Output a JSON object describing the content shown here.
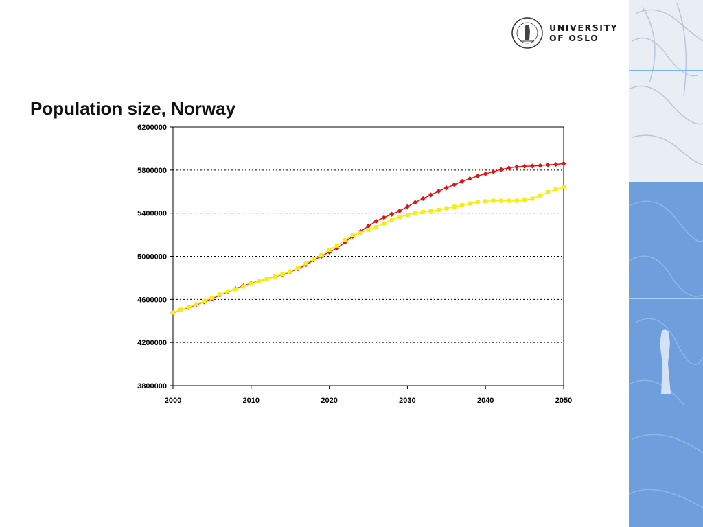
{
  "header": {
    "logo": {
      "line1": "UNIVERSITY",
      "line2": "OF OSLO",
      "seal_text": "UNIVERSITAS OSLOENSIS MDCCCXI"
    }
  },
  "slide": {
    "title": "Population size, Norway"
  },
  "colors": {
    "panel_blue": "#6e9fdc",
    "panel_light": "#e9eef5",
    "panel_line": "#7ab6f0",
    "series_red": "#e01414",
    "series_yellow": "#f3ef10"
  },
  "chart_data": {
    "type": "line",
    "title": "",
    "xlabel": "",
    "ylabel": "",
    "xlim": [
      2000,
      2050
    ],
    "ylim": [
      3800000,
      6200000
    ],
    "x_ticks": [
      2000,
      2010,
      2020,
      2030,
      2040,
      2050
    ],
    "y_ticks": [
      3800000,
      4200000,
      4600000,
      5000000,
      5400000,
      5800000,
      6200000
    ],
    "x_tick_labels": [
      "2000",
      "2010",
      "2020",
      "2030",
      "2040",
      "2050"
    ],
    "y_tick_labels": [
      "3800000",
      "4200000",
      "4600000",
      "5000000",
      "5400000",
      "5800000",
      "6200000"
    ],
    "grid": "horizontal dotted",
    "legend": "none",
    "x": [
      2000,
      2001,
      2002,
      2003,
      2004,
      2005,
      2006,
      2007,
      2008,
      2009,
      2010,
      2011,
      2012,
      2013,
      2014,
      2015,
      2016,
      2017,
      2018,
      2019,
      2020,
      2021,
      2022,
      2023,
      2024,
      2025,
      2026,
      2027,
      2028,
      2029,
      2030,
      2031,
      2032,
      2033,
      2034,
      2035,
      2036,
      2037,
      2038,
      2039,
      2040,
      2041,
      2042,
      2043,
      2044,
      2045,
      2046,
      2047,
      2048,
      2049,
      2050
    ],
    "series": [
      {
        "color": "#e01414",
        "marker": "diamond",
        "values": [
          4478000,
          4503000,
          4525000,
          4552000,
          4577000,
          4606000,
          4640000,
          4670000,
          4700000,
          4725000,
          4750000,
          4770000,
          4790000,
          4810000,
          4830000,
          4855000,
          4885000,
          4920000,
          4965000,
          5000000,
          5040000,
          5075000,
          5130000,
          5185000,
          5230000,
          5280000,
          5325000,
          5360000,
          5390000,
          5420000,
          5460000,
          5500000,
          5535000,
          5570000,
          5605000,
          5635000,
          5665000,
          5695000,
          5720000,
          5745000,
          5765000,
          5785000,
          5805000,
          5820000,
          5830000,
          5835000,
          5838000,
          5842000,
          5848000,
          5852000,
          5860000
        ]
      },
      {
        "color": "#f3ef10",
        "marker": "square",
        "values": [
          4478000,
          4505000,
          4530000,
          4555000,
          4585000,
          4615000,
          4645000,
          4675000,
          4695000,
          4720000,
          4745000,
          4770000,
          4790000,
          4810000,
          4835000,
          4860000,
          4890000,
          4935000,
          4975000,
          5015000,
          5060000,
          5100000,
          5150000,
          5195000,
          5220000,
          5245000,
          5270000,
          5305000,
          5340000,
          5365000,
          5385000,
          5400000,
          5410000,
          5420000,
          5430000,
          5445000,
          5460000,
          5475000,
          5490000,
          5500000,
          5510000,
          5515000,
          5515000,
          5515000,
          5515000,
          5520000,
          5535000,
          5565000,
          5595000,
          5620000,
          5640000
        ]
      }
    ]
  }
}
